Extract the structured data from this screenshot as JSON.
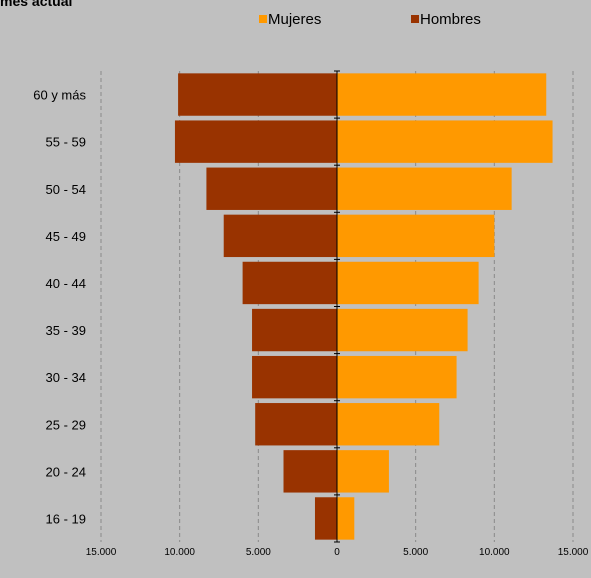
{
  "chart_data": {
    "type": "bar",
    "orientation": "horizontal-population-pyramid",
    "title": "mes actual",
    "categories": [
      "16 - 19",
      "20 - 24",
      "25 - 29",
      "30 - 34",
      "35 - 39",
      "40 - 44",
      "45 - 49",
      "50 - 54",
      "55 - 59",
      "60 y más"
    ],
    "series": [
      {
        "name": "Mujeres",
        "color": "#ff9900",
        "side": "right",
        "values": [
          1100,
          3300,
          6500,
          7600,
          8300,
          9000,
          10000,
          11100,
          13700,
          13300
        ]
      },
      {
        "name": "Hombres",
        "color": "#993300",
        "side": "left",
        "values": [
          1400,
          3400,
          5200,
          5400,
          5400,
          6000,
          7200,
          8300,
          10300,
          10100
        ]
      }
    ],
    "xlim": [
      -15000,
      15000
    ],
    "x_ticks": [
      -15000,
      -10000,
      -5000,
      0,
      5000,
      10000,
      15000
    ],
    "x_tick_labels": [
      "15.000",
      "10.000",
      "5.000",
      "0",
      "5.000",
      "10.000",
      "15.000"
    ],
    "grid": "vertical-dashed",
    "legend_position": "top"
  }
}
